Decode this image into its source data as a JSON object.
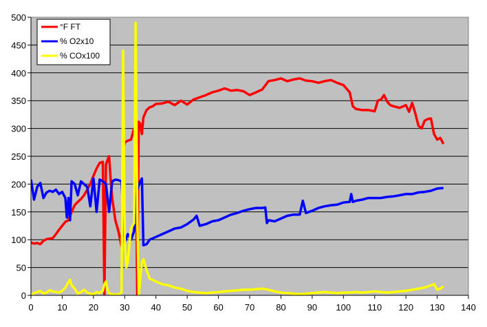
{
  "chart_data": {
    "type": "line",
    "title": "",
    "xlabel": "",
    "ylabel": "",
    "xlim": [
      0,
      140
    ],
    "ylim": [
      0,
      500
    ],
    "xticks": [
      "0",
      "10",
      "20",
      "30",
      "40",
      "50",
      "60",
      "70",
      "80",
      "90",
      "100",
      "110",
      "120",
      "130",
      "140"
    ],
    "yticks": [
      "0",
      "50",
      "100",
      "150",
      "200",
      "250",
      "300",
      "350",
      "400",
      "450",
      "500"
    ],
    "grid": "horizontal",
    "plot_background": "#c0c0c0",
    "legend_position": "top-left",
    "series": [
      {
        "name": "°F FT",
        "color": "#ff0000",
        "x": [
          0,
          1,
          2,
          3,
          4,
          5,
          6,
          7,
          8,
          9,
          10,
          11,
          12,
          13,
          14,
          15,
          16,
          17,
          18,
          19,
          20,
          21,
          22,
          23,
          23.5,
          24,
          24.3,
          24.6,
          25,
          25.5,
          26,
          27,
          28,
          29,
          29.5,
          30,
          31,
          32,
          33,
          33.5,
          34,
          34.5,
          35,
          35.5,
          36,
          37,
          38,
          39,
          40,
          42,
          44,
          46,
          48,
          50,
          52,
          54,
          56,
          58,
          60,
          62,
          64,
          66,
          68,
          70,
          72,
          74,
          76,
          78,
          80,
          82,
          84,
          86,
          88,
          90,
          92,
          94,
          96,
          98,
          100,
          102,
          103,
          104,
          106,
          108,
          110,
          111,
          112,
          113,
          114,
          115,
          116,
          118,
          120,
          121,
          122,
          123,
          124,
          125,
          126,
          127,
          128,
          129,
          130,
          131,
          132
        ],
        "values": [
          95,
          93,
          94,
          92,
          98,
          101,
          102,
          103,
          110,
          118,
          125,
          132,
          135,
          150,
          162,
          168,
          173,
          180,
          190,
          200,
          215,
          228,
          238,
          240,
          0,
          235,
          240,
          245,
          250,
          210,
          175,
          135,
          115,
          88,
          260,
          275,
          278,
          280,
          300,
          290,
          0,
          312,
          308,
          290,
          320,
          333,
          338,
          340,
          344,
          345,
          348,
          342,
          350,
          343,
          352,
          356,
          360,
          365,
          368,
          372,
          368,
          369,
          367,
          360,
          365,
          370,
          385,
          387,
          390,
          385,
          388,
          390,
          386,
          385,
          382,
          385,
          387,
          382,
          378,
          365,
          340,
          335,
          333,
          333,
          331,
          350,
          352,
          360,
          348,
          342,
          340,
          337,
          342,
          330,
          346,
          327,
          305,
          300,
          314,
          317,
          318,
          290,
          280,
          283,
          272
        ]
      },
      {
        "name": "% O2x10",
        "color": "#0000ff",
        "x": [
          0,
          0.5,
          1,
          2,
          3,
          4,
          5,
          6,
          7,
          8,
          9,
          10,
          11,
          11.5,
          12,
          12.5,
          13,
          14,
          15,
          16,
          17,
          18,
          19,
          20,
          21,
          22,
          23,
          24,
          25,
          26,
          27,
          28,
          29,
          30,
          31,
          32,
          33,
          34,
          35,
          35.5,
          36,
          37,
          38,
          40,
          42,
          44,
          46,
          48,
          50,
          52,
          53,
          54,
          56,
          58,
          60,
          62,
          64,
          66,
          68,
          70,
          72,
          74,
          75,
          75.5,
          76,
          78,
          80,
          82,
          84,
          86,
          87,
          88,
          90,
          92,
          94,
          96,
          98,
          100,
          102,
          102.5,
          103,
          104,
          106,
          108,
          110,
          112,
          114,
          116,
          118,
          120,
          122,
          124,
          126,
          128,
          130,
          132
        ],
        "values": [
          208,
          190,
          172,
          195,
          202,
          175,
          185,
          188,
          186,
          190,
          182,
          186,
          175,
          140,
          175,
          135,
          205,
          200,
          180,
          205,
          200,
          195,
          160,
          210,
          150,
          208,
          205,
          200,
          150,
          205,
          208,
          207,
          205,
          95,
          110,
          100,
          115,
          190,
          205,
          210,
          90,
          92,
          100,
          105,
          110,
          115,
          120,
          122,
          128,
          136,
          143,
          125,
          128,
          133,
          135,
          140,
          145,
          148,
          152,
          155,
          157,
          157,
          158,
          130,
          135,
          133,
          138,
          143,
          145,
          145,
          170,
          148,
          152,
          157,
          160,
          162,
          163,
          167,
          168,
          182,
          168,
          170,
          172,
          175,
          175,
          175,
          177,
          178,
          180,
          182,
          182,
          185,
          186,
          188,
          192,
          193
        ]
      },
      {
        "name": "% COx100",
        "color": "#ffff00",
        "x": [
          0,
          1,
          2,
          3,
          4,
          5,
          6,
          7,
          8,
          9,
          10,
          11,
          12,
          12.5,
          13,
          14,
          15,
          16,
          17,
          18,
          19,
          20,
          21,
          22,
          23,
          23.5,
          24,
          24.5,
          25,
          26,
          27,
          28,
          29,
          29.5,
          30,
          30.5,
          31,
          32,
          33,
          33.5,
          34,
          34.5,
          35,
          35.5,
          36,
          37,
          38,
          40,
          42,
          44,
          46,
          48,
          50,
          52,
          54,
          56,
          58,
          60,
          62,
          64,
          66,
          68,
          70,
          72,
          74,
          76,
          78,
          80,
          82,
          84,
          86,
          88,
          90,
          92,
          94,
          96,
          98,
          100,
          102,
          104,
          106,
          108,
          110,
          112,
          114,
          116,
          118,
          120,
          122,
          124,
          126,
          128,
          129,
          130,
          131,
          132
        ],
        "values": [
          0,
          4,
          6,
          8,
          3,
          5,
          9,
          7,
          6,
          5,
          8,
          14,
          24,
          28,
          18,
          12,
          3,
          6,
          10,
          5,
          3,
          2,
          6,
          4,
          8,
          20,
          25,
          10,
          4,
          2,
          1,
          2,
          5,
          440,
          100,
          50,
          60,
          120,
          130,
          490,
          150,
          0,
          30,
          60,
          65,
          45,
          30,
          25,
          20,
          18,
          14,
          12,
          8,
          6,
          5,
          4,
          5,
          6,
          7,
          8,
          9,
          10,
          10,
          11,
          12,
          10,
          7,
          5,
          4,
          3,
          2,
          3,
          4,
          5,
          6,
          5,
          4,
          5,
          5,
          6,
          5,
          6,
          7,
          6,
          5,
          6,
          7,
          8,
          10,
          12,
          14,
          18,
          20,
          10,
          12,
          16
        ]
      }
    ]
  }
}
